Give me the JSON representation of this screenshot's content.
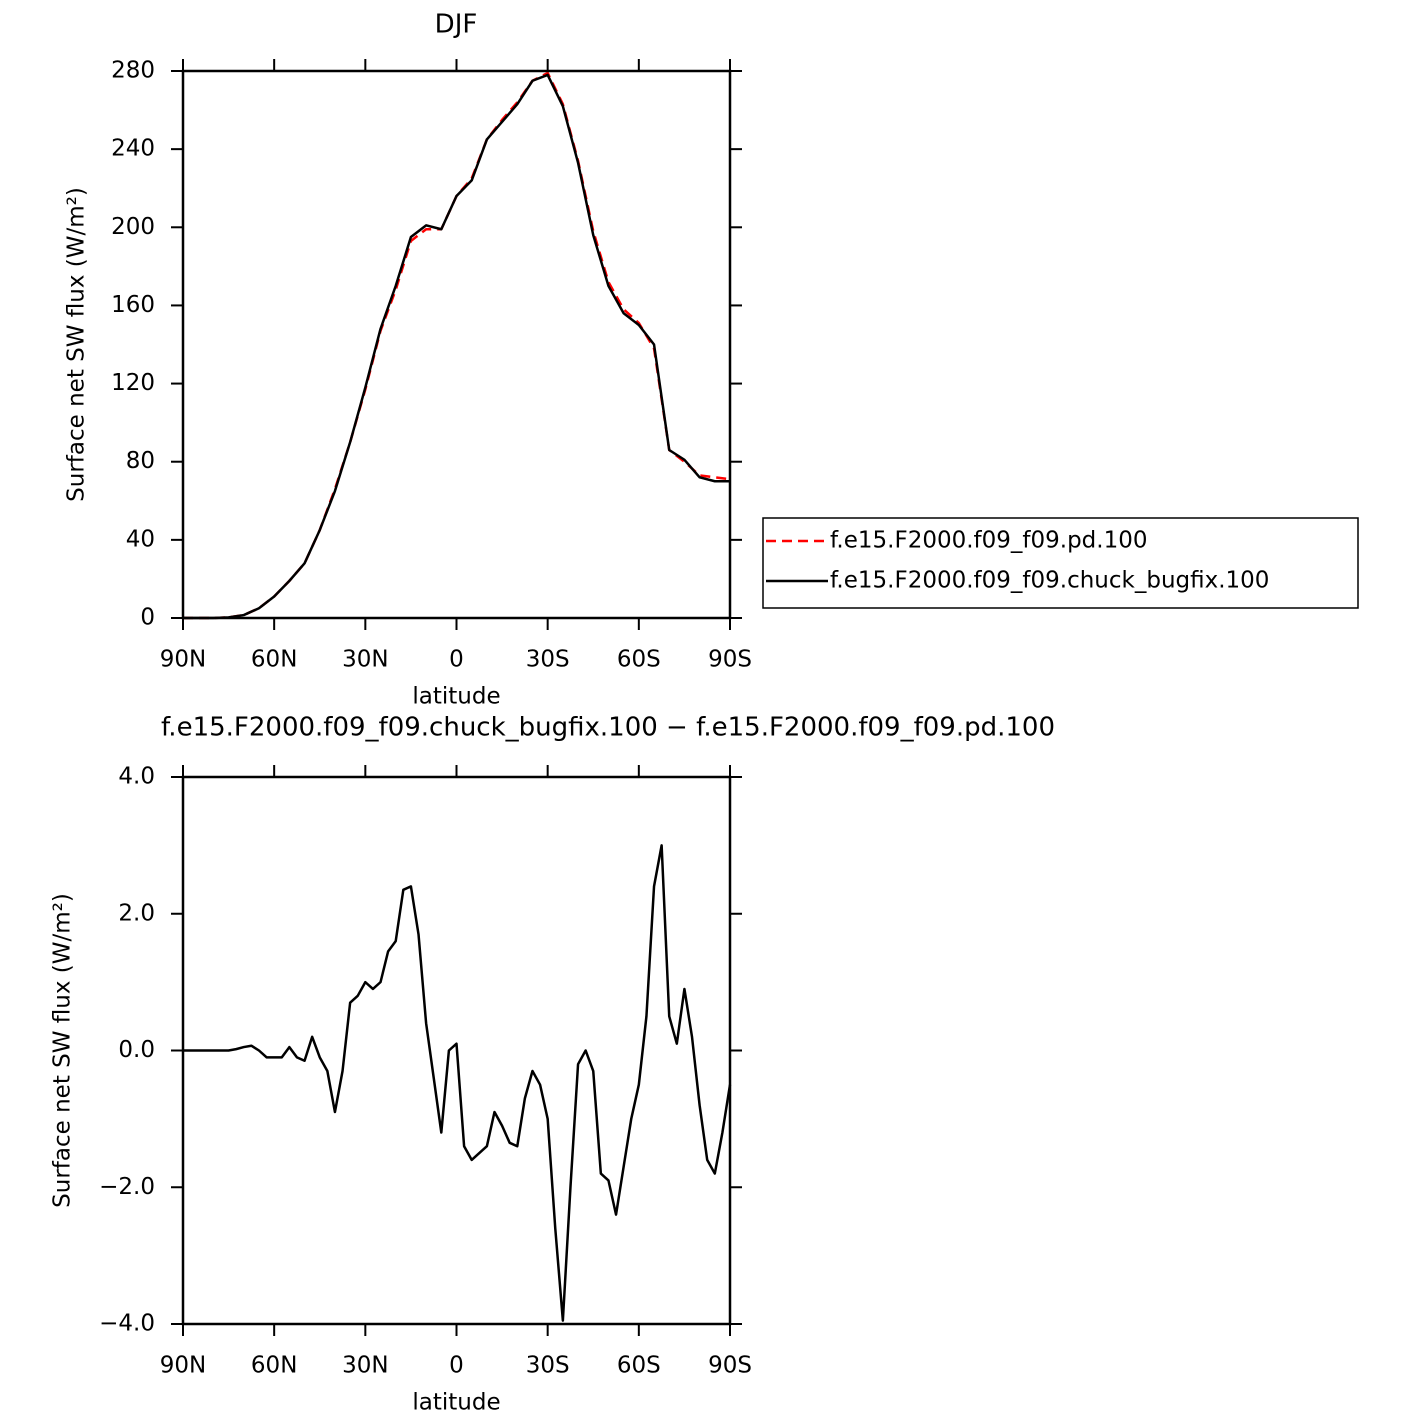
{
  "chart_data": [
    {
      "type": "line",
      "title": "DJF",
      "xlabel": "latitude",
      "ylabel": "Surface net SW flux (W/m²)",
      "x": [
        90,
        85,
        80,
        75,
        70,
        65,
        60,
        55,
        50,
        45,
        40,
        35,
        30,
        25,
        20,
        15,
        10,
        5,
        0,
        -5,
        -10,
        -15,
        -20,
        -25,
        -30,
        -35,
        -40,
        -45,
        -50,
        -55,
        -60,
        -65,
        -70,
        -75,
        -80,
        -85,
        -90
      ],
      "series": [
        {
          "name": "f.e15.F2000.f09_f09.pd.100",
          "color": "#ff0000",
          "linestyle": "dashed",
          "values": [
            0,
            0,
            0,
            0.3,
            1.5,
            5,
            11,
            19,
            28,
            45,
            66,
            90,
            117,
            147,
            168,
            193,
            199,
            199,
            216,
            225,
            245,
            255,
            264,
            275,
            279,
            263,
            234,
            198,
            172,
            158,
            151,
            138,
            86,
            80,
            73,
            72,
            71
          ]
        },
        {
          "name": "f.e15.F2000.f09_f09.chuck_bugfix.100",
          "color": "#000000",
          "linestyle": "solid",
          "values": [
            0,
            0,
            0,
            0.3,
            1.5,
            5,
            11,
            19,
            28,
            45,
            65,
            90,
            118,
            148,
            170,
            195,
            201,
            199,
            216,
            224,
            245,
            254,
            263,
            275,
            278,
            262,
            233,
            196,
            170,
            156,
            150,
            140,
            86,
            81,
            72,
            70,
            70
          ]
        }
      ],
      "xlim": [
        90,
        -90
      ],
      "xticks": [
        {
          "value": 90,
          "label": "90N"
        },
        {
          "value": 60,
          "label": "60N"
        },
        {
          "value": 30,
          "label": "30N"
        },
        0,
        {
          "value": -30,
          "label": "30S"
        },
        {
          "value": -60,
          "label": "60S"
        },
        {
          "value": -90,
          "label": "90S"
        }
      ],
      "ylim": [
        0,
        280
      ],
      "yticks": [
        0,
        40,
        80,
        120,
        160,
        200,
        240,
        280
      ],
      "legend": "right"
    },
    {
      "type": "line",
      "title": "f.e15.F2000.f09_f09.chuck_bugfix.100 − f.e15.F2000.f09_f09.pd.100",
      "xlabel": "latitude",
      "ylabel": "Surface net SW flux (W/m²)",
      "x": [
        90,
        87.5,
        85,
        82.5,
        80,
        77.5,
        75,
        72.5,
        70,
        67.5,
        65,
        62.5,
        60,
        57.5,
        55,
        52.5,
        50,
        47.5,
        45,
        42.5,
        40,
        37.5,
        35,
        32.5,
        30,
        27.5,
        25,
        22.5,
        20,
        17.5,
        15,
        12.5,
        10,
        7.5,
        5,
        2.5,
        0,
        -2.5,
        -5,
        -7.5,
        -10,
        -12.5,
        -15,
        -17.5,
        -20,
        -22.5,
        -25,
        -27.5,
        -30,
        -32.5,
        -35,
        -37.5,
        -40,
        -42.5,
        -45,
        -47.5,
        -50,
        -52.5,
        -55,
        -57.5,
        -60,
        -62.5,
        -65,
        -67.5,
        -70,
        -72.5,
        -75,
        -77.5,
        -80,
        -82.5,
        -85,
        -87.5,
        -90
      ],
      "values": [
        0,
        0,
        0,
        0,
        0,
        0,
        0,
        0.02,
        0.05,
        0.07,
        0,
        -0.1,
        -0.1,
        -0.1,
        0.05,
        -0.1,
        -0.15,
        0.2,
        -0.1,
        -0.3,
        -0.9,
        -0.3,
        0.7,
        0.8,
        1.0,
        0.9,
        1.0,
        1.45,
        1.6,
        2.35,
        2.4,
        1.7,
        0.4,
        -0.4,
        -1.2,
        0,
        0.1,
        -1.4,
        -1.6,
        -1.5,
        -1.4,
        -0.9,
        -1.1,
        -1.35,
        -1.4,
        -0.7,
        -0.3,
        -0.5,
        -1.0,
        -2.6,
        -3.95,
        -2.0,
        -0.2,
        0,
        -0.3,
        -1.8,
        -1.9,
        -2.4,
        -1.7,
        -1.0,
        -0.5,
        0.5,
        2.4,
        3.0,
        0.5,
        0.1,
        0.9,
        0.2,
        -0.8,
        -1.6,
        -1.8,
        -1.2,
        -0.5
      ],
      "color": "#000000",
      "xlim": [
        90,
        -90
      ],
      "xticks": [
        {
          "value": 90,
          "label": "90N"
        },
        {
          "value": 60,
          "label": "60N"
        },
        {
          "value": 30,
          "label": "30N"
        },
        0,
        {
          "value": -30,
          "label": "30S"
        },
        {
          "value": -60,
          "label": "60S"
        },
        {
          "value": -90,
          "label": "90S"
        }
      ],
      "ylim": [
        -4,
        4
      ],
      "yticks": [
        {
          "value": -4,
          "label": "−4.0"
        },
        {
          "value": -2,
          "label": "−2.0"
        },
        {
          "value": 0,
          "label": "0.0"
        },
        {
          "value": 2,
          "label": "2.0"
        },
        {
          "value": 4,
          "label": "4.0"
        }
      ]
    }
  ]
}
